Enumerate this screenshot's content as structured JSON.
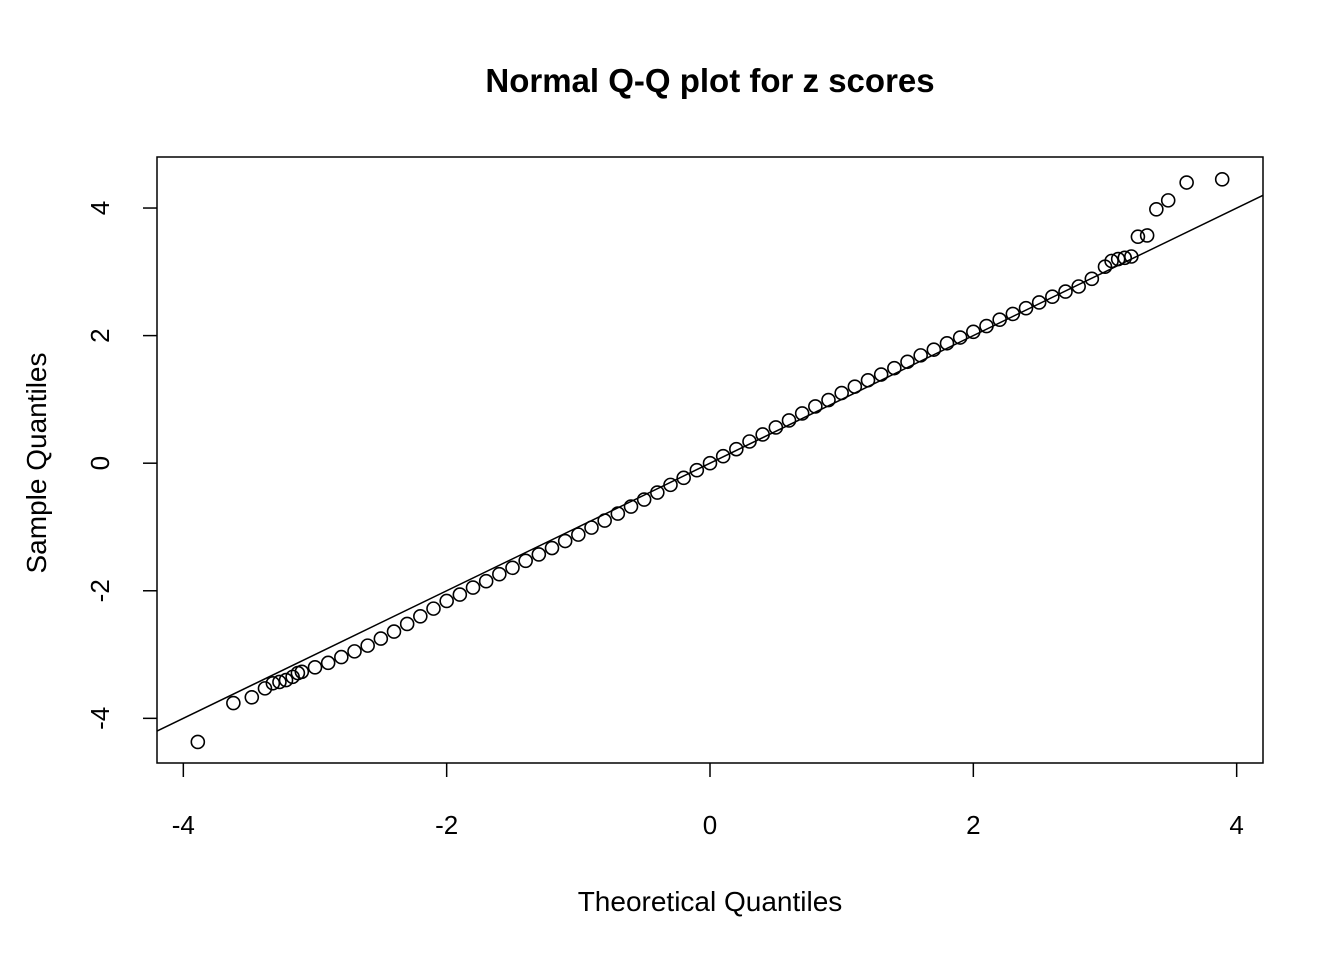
{
  "chart_data": {
    "type": "scatter",
    "title": "Normal Q-Q plot for z scores",
    "xlabel": "Theoretical Quantiles",
    "ylabel": "Sample Quantiles",
    "xlim": [
      -4.2,
      4.2
    ],
    "ylim": [
      -4.7,
      4.8
    ],
    "xticks": [
      -4,
      -2,
      0,
      2,
      4
    ],
    "yticks": [
      -4,
      -2,
      0,
      2,
      4
    ],
    "xtick_labels": [
      "-4",
      "-2",
      "0",
      "2",
      "4"
    ],
    "ytick_labels": [
      "-4",
      "-2",
      "0",
      "2",
      "4"
    ],
    "grid": false,
    "marker": "open-circle",
    "colors": {
      "points": "#000000",
      "line": "#000000",
      "background": "#ffffff"
    },
    "reference_line": {
      "intercept": 0,
      "slope": 1
    },
    "points": [
      [
        -3.89,
        -4.37
      ],
      [
        -3.62,
        -3.76
      ],
      [
        -3.48,
        -3.67
      ],
      [
        -3.38,
        -3.53
      ],
      [
        -3.32,
        -3.45
      ],
      [
        -3.27,
        -3.43
      ],
      [
        -3.22,
        -3.4
      ],
      [
        -3.17,
        -3.35
      ],
      [
        -3.13,
        -3.29
      ],
      [
        -3.1,
        -3.27
      ],
      [
        -3.0,
        -3.2
      ],
      [
        -2.9,
        -3.13
      ],
      [
        -2.8,
        -3.04
      ],
      [
        -2.7,
        -2.95
      ],
      [
        -2.6,
        -2.86
      ],
      [
        -2.5,
        -2.75
      ],
      [
        -2.4,
        -2.64
      ],
      [
        -2.3,
        -2.52
      ],
      [
        -2.2,
        -2.4
      ],
      [
        -2.1,
        -2.28
      ],
      [
        -2.0,
        -2.16
      ],
      [
        -1.9,
        -2.06
      ],
      [
        -1.8,
        -1.95
      ],
      [
        -1.7,
        -1.85
      ],
      [
        -1.6,
        -1.74
      ],
      [
        -1.5,
        -1.64
      ],
      [
        -1.4,
        -1.53
      ],
      [
        -1.3,
        -1.43
      ],
      [
        -1.2,
        -1.33
      ],
      [
        -1.1,
        -1.22
      ],
      [
        -1.0,
        -1.12
      ],
      [
        -0.9,
        -1.01
      ],
      [
        -0.8,
        -0.9
      ],
      [
        -0.7,
        -0.79
      ],
      [
        -0.6,
        -0.68
      ],
      [
        -0.5,
        -0.57
      ],
      [
        -0.4,
        -0.46
      ],
      [
        -0.3,
        -0.34
      ],
      [
        -0.2,
        -0.23
      ],
      [
        -0.1,
        -0.11
      ],
      [
        0,
        0
      ],
      [
        0.1,
        0.11
      ],
      [
        0.2,
        0.22
      ],
      [
        0.3,
        0.34
      ],
      [
        0.4,
        0.45
      ],
      [
        0.5,
        0.56
      ],
      [
        0.6,
        0.67
      ],
      [
        0.7,
        0.78
      ],
      [
        0.8,
        0.89
      ],
      [
        0.9,
        0.99
      ],
      [
        1.0,
        1.1
      ],
      [
        1.1,
        1.2
      ],
      [
        1.2,
        1.3
      ],
      [
        1.3,
        1.39
      ],
      [
        1.4,
        1.49
      ],
      [
        1.5,
        1.59
      ],
      [
        1.6,
        1.69
      ],
      [
        1.7,
        1.78
      ],
      [
        1.8,
        1.88
      ],
      [
        1.9,
        1.97
      ],
      [
        2.0,
        2.06
      ],
      [
        2.1,
        2.15
      ],
      [
        2.2,
        2.25
      ],
      [
        2.3,
        2.34
      ],
      [
        2.4,
        2.43
      ],
      [
        2.5,
        2.52
      ],
      [
        2.6,
        2.61
      ],
      [
        2.7,
        2.69
      ],
      [
        2.8,
        2.77
      ],
      [
        2.9,
        2.89
      ],
      [
        3.0,
        3.08
      ],
      [
        3.05,
        3.17
      ],
      [
        3.1,
        3.2
      ],
      [
        3.15,
        3.22
      ],
      [
        3.2,
        3.24
      ],
      [
        3.25,
        3.55
      ],
      [
        3.32,
        3.57
      ],
      [
        3.39,
        3.98
      ],
      [
        3.48,
        4.12
      ],
      [
        3.62,
        4.4
      ],
      [
        3.89,
        4.45
      ]
    ]
  }
}
